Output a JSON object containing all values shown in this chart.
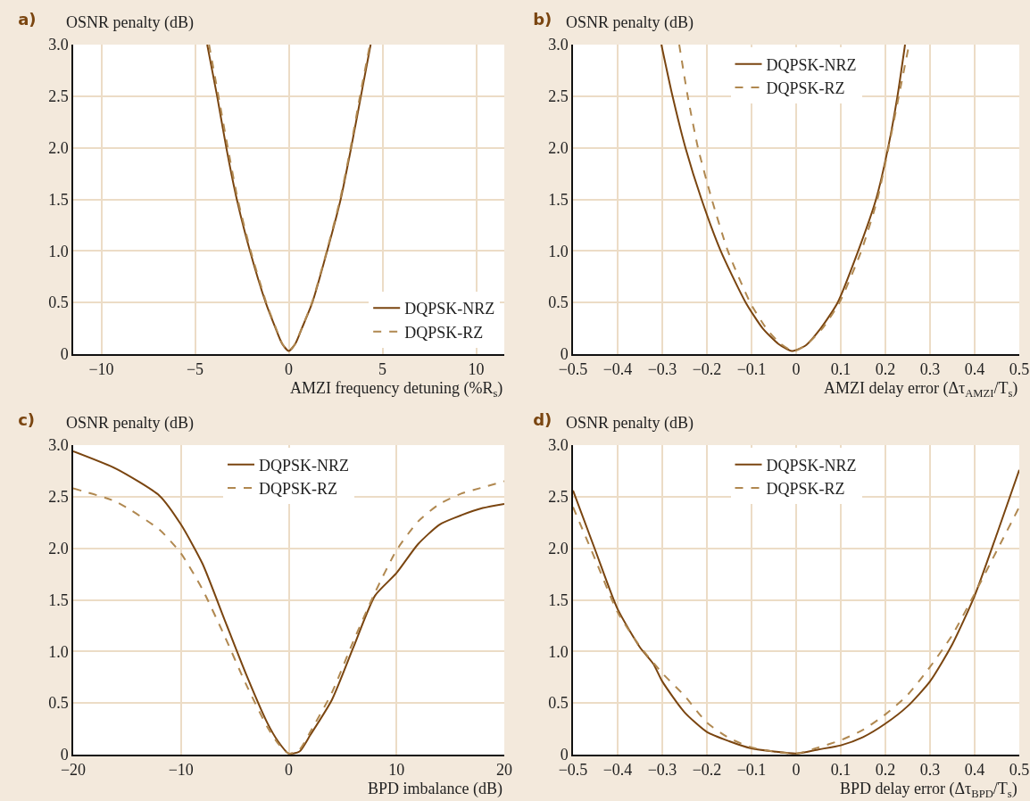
{
  "chart_data": [
    {
      "type": "line",
      "title": "a)",
      "ylabel": "OSNR penalty (dB)",
      "xlabel": "AMZI frequency detuning (%R$_{s}$)",
      "xlim": [
        -11.5,
        11.5
      ],
      "ylim": [
        0,
        3
      ],
      "xticks": [
        {
          "value": -10,
          "label": "−10"
        },
        {
          "value": -5,
          "label": "−5"
        },
        0,
        5,
        10
      ],
      "yticks": [
        0,
        0.5,
        {
          "value": 1,
          "label": "1.0"
        },
        1.5,
        {
          "value": 2,
          "label": "2.0"
        },
        2.5,
        {
          "value": 3,
          "label": "3.0"
        }
      ],
      "grid": true,
      "legend": "bottom right",
      "series": [
        {
          "name": "DQPSK-NRZ",
          "color": "#7a4510",
          "line_style": "solid",
          "x": [
            -4.35,
            -3.82,
            -3.33,
            -2.77,
            -2.07,
            -1.23,
            -0.7,
            -0.35,
            0,
            0.35,
            0.7,
            1.26,
            2.05,
            2.77,
            3.33,
            3.85,
            4.37
          ],
          "values": [
            3.0,
            2.5,
            2.0,
            1.5,
            1.0,
            0.5,
            0.25,
            0.1,
            0.03,
            0.1,
            0.25,
            0.5,
            1.0,
            1.5,
            2.0,
            2.5,
            3.0
          ]
        },
        {
          "name": "DQPSK-RZ",
          "color": "#b08850",
          "line_style": "dashed",
          "x": [
            -4.25,
            -3.75,
            -3.25,
            -2.72,
            -2.03,
            -1.2,
            -0.68,
            -0.34,
            0,
            0.34,
            0.69,
            1.24,
            2.03,
            2.74,
            3.3,
            3.8,
            4.33
          ],
          "values": [
            3.0,
            2.5,
            2.0,
            1.5,
            1.0,
            0.5,
            0.25,
            0.1,
            0.03,
            0.1,
            0.25,
            0.5,
            1.0,
            1.5,
            2.0,
            2.5,
            3.0
          ]
        }
      ]
    },
    {
      "type": "line",
      "title": "b)",
      "ylabel": "OSNR penalty (dB)",
      "xlabel": "AMZI delay error (Δτ$_{AMZI}$/T$_{s}$)",
      "xlim": [
        -0.5,
        0.5
      ],
      "ylim": [
        0,
        3
      ],
      "xticks": [
        {
          "value": -0.5,
          "label": "−0.5"
        },
        {
          "value": -0.4,
          "label": "−0.4"
        },
        {
          "value": -0.3,
          "label": "−0.3"
        },
        {
          "value": -0.2,
          "label": "−0.2"
        },
        {
          "value": -0.1,
          "label": "−0.1"
        },
        0,
        0.1,
        0.2,
        0.3,
        0.4,
        0.5
      ],
      "yticks": [
        0,
        0.5,
        {
          "value": 1,
          "label": "1.0"
        },
        1.5,
        {
          "value": 2,
          "label": "2.0"
        },
        2.5,
        {
          "value": 3,
          "label": "3.0"
        }
      ],
      "grid": true,
      "legend": "top",
      "series": [
        {
          "name": "DQPSK-NRZ",
          "color": "#7a4510",
          "line_style": "solid",
          "x": [
            -0.302,
            -0.277,
            -0.248,
            -0.212,
            -0.169,
            -0.113,
            -0.075,
            -0.04,
            -0.01,
            0.02,
            0.055,
            0.093,
            0.139,
            0.179,
            0.206,
            0.227,
            0.244
          ],
          "values": [
            3.0,
            2.5,
            2.0,
            1.5,
            1.0,
            0.5,
            0.25,
            0.1,
            0.03,
            0.08,
            0.25,
            0.5,
            1.0,
            1.5,
            2.0,
            2.5,
            3.0
          ]
        },
        {
          "name": "DQPSK-RZ",
          "color": "#b08850",
          "line_style": "dashed",
          "x": [
            -0.262,
            -0.243,
            -0.22,
            -0.189,
            -0.153,
            -0.103,
            -0.067,
            -0.035,
            -0.005,
            0.025,
            0.059,
            0.097,
            0.146,
            0.182,
            0.207,
            0.23,
            0.253
          ],
          "values": [
            3.0,
            2.5,
            2.0,
            1.5,
            1.0,
            0.5,
            0.25,
            0.1,
            0.03,
            0.1,
            0.25,
            0.5,
            1.0,
            1.5,
            2.0,
            2.5,
            3.0
          ]
        }
      ]
    },
    {
      "type": "line",
      "title": "c)",
      "ylabel": "OSNR penalty (dB)",
      "xlabel": "BPD imbalance (dB)",
      "xlim": [
        -20,
        20
      ],
      "ylim": [
        0,
        3
      ],
      "xticks": [
        {
          "value": -20,
          "label": "−20"
        },
        {
          "value": -10,
          "label": "−10"
        },
        0,
        10,
        20
      ],
      "yticks": [
        0,
        0.5,
        {
          "value": 1,
          "label": "1.0"
        },
        1.5,
        {
          "value": 2,
          "label": "2.0"
        },
        2.5,
        {
          "value": 3,
          "label": "3.0"
        }
      ],
      "grid": true,
      "legend": "top",
      "series": [
        {
          "name": "DQPSK-NRZ",
          "color": "#7a4510",
          "line_style": "solid",
          "x": [
            -20,
            -16,
            -12,
            -10,
            -8,
            -6,
            -4,
            -2,
            -1,
            0,
            1,
            2,
            4,
            6,
            8,
            10,
            12,
            14,
            16,
            18,
            20
          ],
          "values": [
            2.94,
            2.77,
            2.51,
            2.23,
            1.85,
            1.32,
            0.79,
            0.31,
            0.13,
            0.01,
            0.03,
            0.19,
            0.53,
            1.04,
            1.54,
            1.76,
            2.04,
            2.23,
            2.32,
            2.39,
            2.43
          ]
        },
        {
          "name": "DQPSK-RZ",
          "color": "#b08850",
          "line_style": "dashed",
          "x": [
            -20,
            -16,
            -12,
            -10,
            -8,
            -6,
            -4,
            -2,
            -1,
            0,
            1,
            2,
            4,
            6,
            8,
            10,
            12,
            14,
            16,
            18,
            20
          ],
          "values": [
            2.58,
            2.45,
            2.18,
            1.95,
            1.6,
            1.16,
            0.69,
            0.27,
            0.11,
            0.01,
            0.05,
            0.22,
            0.6,
            1.1,
            1.57,
            1.98,
            2.26,
            2.43,
            2.53,
            2.59,
            2.65
          ]
        }
      ]
    },
    {
      "type": "line",
      "title": "d)",
      "ylabel": "OSNR penalty (dB)",
      "xlabel": "BPD delay error (Δτ$_{BPD}$/T$_{s}$)",
      "xlim": [
        -0.5,
        0.5
      ],
      "ylim": [
        0,
        3
      ],
      "xticks": [
        {
          "value": -0.5,
          "label": "−0.5"
        },
        {
          "value": -0.4,
          "label": "−0.4"
        },
        {
          "value": -0.3,
          "label": "−0.3"
        },
        {
          "value": -0.2,
          "label": "−0.2"
        },
        {
          "value": -0.1,
          "label": "−0.1"
        },
        0,
        0.1,
        0.2,
        0.3,
        0.4,
        0.5
      ],
      "yticks": [
        0,
        0.5,
        {
          "value": 1,
          "label": "1.0"
        },
        1.5,
        {
          "value": 2,
          "label": "2.0"
        },
        2.5,
        {
          "value": 3,
          "label": "3.0"
        }
      ],
      "grid": true,
      "legend": "top",
      "series": [
        {
          "name": "DQPSK-NRZ",
          "color": "#7a4510",
          "line_style": "solid",
          "x": [
            -0.5,
            -0.45,
            -0.4,
            -0.35,
            -0.32,
            -0.3,
            -0.25,
            -0.2,
            -0.15,
            -0.1,
            -0.05,
            0,
            0.05,
            0.1,
            0.15,
            0.2,
            0.25,
            0.3,
            0.35,
            0.4,
            0.45,
            0.5
          ],
          "values": [
            2.56,
            1.98,
            1.41,
            1.04,
            0.88,
            0.71,
            0.41,
            0.22,
            0.13,
            0.06,
            0.03,
            0.01,
            0.05,
            0.09,
            0.17,
            0.3,
            0.47,
            0.71,
            1.07,
            1.54,
            2.14,
            2.76
          ]
        },
        {
          "name": "DQPSK-RZ",
          "color": "#b08850",
          "line_style": "dashed",
          "x": [
            -0.5,
            -0.45,
            -0.4,
            -0.35,
            -0.3,
            -0.25,
            -0.2,
            -0.15,
            -0.1,
            -0.05,
            0,
            0.05,
            0.1,
            0.15,
            0.2,
            0.25,
            0.3,
            0.35,
            0.4,
            0.45,
            0.5
          ],
          "values": [
            2.4,
            1.89,
            1.38,
            1.05,
            0.79,
            0.57,
            0.31,
            0.16,
            0.07,
            0.03,
            0.01,
            0.07,
            0.14,
            0.24,
            0.39,
            0.58,
            0.85,
            1.16,
            1.56,
            1.98,
            2.4
          ]
        }
      ]
    }
  ]
}
